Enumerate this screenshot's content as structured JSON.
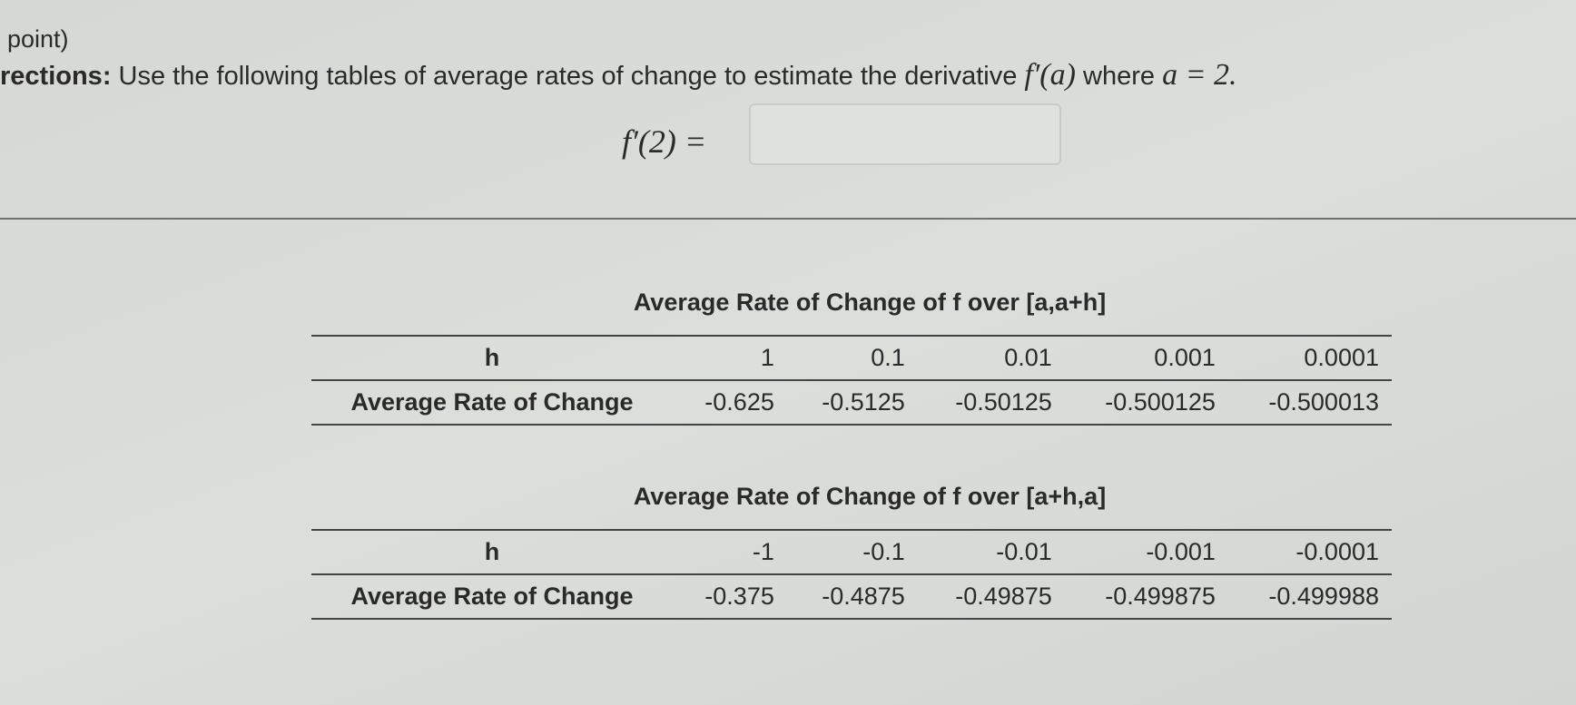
{
  "header": {
    "points": "point)"
  },
  "directions": {
    "label": "rections:",
    "text": "Use the following tables of average rates of change to estimate the derivative",
    "expr": "f′(a)",
    "where": "where",
    "condition": "a = 2."
  },
  "answer": {
    "label": "f′(2) ="
  },
  "tables": [
    {
      "title": "Average Rate of Change of f over [a,a+h]",
      "rows": [
        [
          "h",
          "1",
          "0.1",
          "0.01",
          "0.001",
          "0.0001"
        ],
        [
          "Average Rate of Change",
          "-0.625",
          "-0.5125",
          "-0.50125",
          "-0.500125",
          "-0.500013"
        ]
      ]
    },
    {
      "title": "Average Rate of Change of f over [a+h,a]",
      "rows": [
        [
          "h",
          "-1",
          "-0.1",
          "-0.01",
          "-0.001",
          "-0.0001"
        ],
        [
          "Average Rate of Change",
          "-0.375",
          "-0.4875",
          "-0.49875",
          "-0.499875",
          "-0.499988"
        ]
      ]
    }
  ]
}
